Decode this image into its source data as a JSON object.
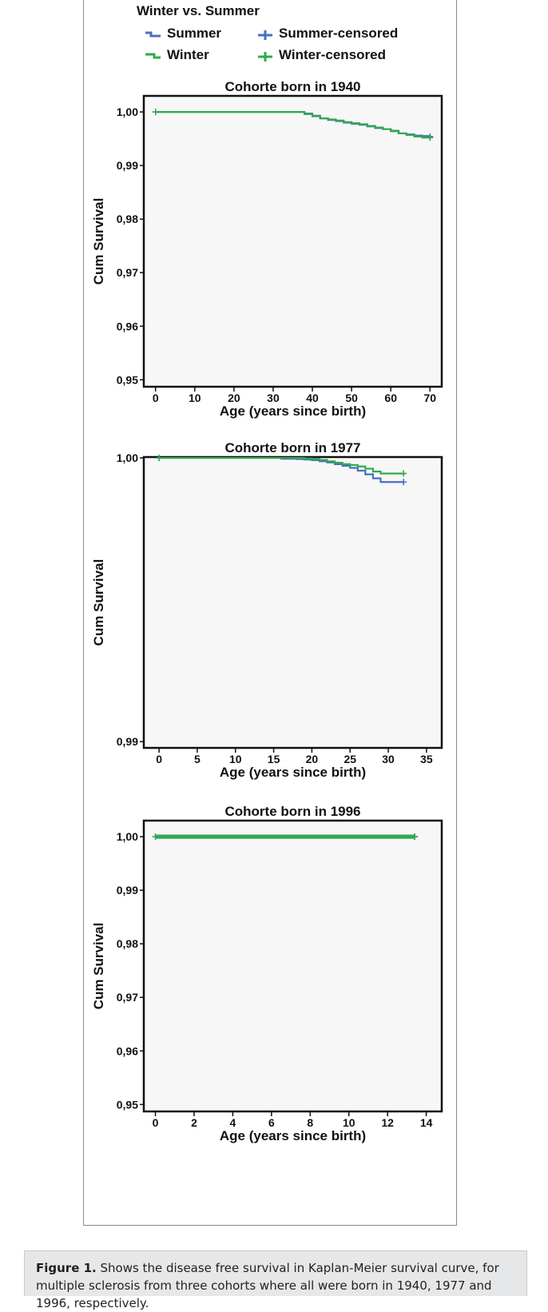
{
  "legend": {
    "title": "Winter vs. Summer",
    "items": [
      {
        "id": "summer",
        "label": "Summer",
        "symbol": "step",
        "color": "#4a6fbf"
      },
      {
        "id": "summer_censored",
        "label": "Summer-censored",
        "symbol": "plus",
        "color": "#4a6fbf"
      },
      {
        "id": "winter",
        "label": "Winter",
        "symbol": "step",
        "color": "#2eab4a"
      },
      {
        "id": "winter_censored",
        "label": "Winter-censored",
        "symbol": "plus",
        "color": "#2eab4a"
      }
    ]
  },
  "colors": {
    "summer": "#4a6fbf",
    "winter": "#2eab4a",
    "plot_bg": "#f7f7f7",
    "frame": "#111111"
  },
  "chart_data": [
    {
      "type": "line",
      "title": "Cohorte born in 1940",
      "xlabel": "Age (years since birth)",
      "ylabel": "Cum Survival",
      "xlim": [
        -3,
        73
      ],
      "ylim": [
        0.9487,
        1.003
      ],
      "x_ticks": [
        0,
        10,
        20,
        30,
        40,
        50,
        60,
        70
      ],
      "y_ticks": [
        0.95,
        0.96,
        0.97,
        0.98,
        0.99,
        1.0
      ],
      "y_tick_labels": [
        "0,95",
        "0,96",
        "0,97",
        "0,98",
        "0,99",
        "1,00"
      ],
      "series": [
        {
          "name": "Summer",
          "color": "#4a6fbf",
          "x": [
            0,
            34,
            36,
            38,
            40,
            42,
            44,
            46,
            48,
            50,
            52,
            54,
            56,
            58,
            60,
            62,
            64,
            66,
            68,
            70
          ],
          "y": [
            1.0,
            1.0,
            1.0,
            0.9997,
            0.9993,
            0.9988,
            0.9985,
            0.9983,
            0.998,
            0.9978,
            0.9976,
            0.9973,
            0.997,
            0.9968,
            0.9965,
            0.996,
            0.9958,
            0.9956,
            0.9955,
            0.9954
          ]
        },
        {
          "name": "Winter",
          "color": "#2eab4a",
          "x": [
            0,
            34,
            36,
            38,
            40,
            42,
            44,
            46,
            48,
            50,
            52,
            54,
            56,
            58,
            60,
            62,
            64,
            66,
            68,
            70
          ],
          "y": [
            1.0,
            1.0,
            1.0,
            0.9996,
            0.9992,
            0.9988,
            0.9986,
            0.9984,
            0.9981,
            0.9979,
            0.9977,
            0.9974,
            0.9971,
            0.9968,
            0.9964,
            0.996,
            0.9957,
            0.9954,
            0.9952,
            0.9952
          ]
        }
      ]
    },
    {
      "type": "line",
      "title": "Cohorte born in 1977",
      "xlabel": "Age (years since birth)",
      "ylabel": "Cum Survival",
      "xlim": [
        -2,
        37
      ],
      "ylim": [
        0.98978,
        1.00003
      ],
      "x_ticks": [
        0,
        5,
        10,
        15,
        20,
        25,
        30,
        35
      ],
      "y_ticks": [
        0.99,
        1.0
      ],
      "y_tick_labels": [
        "0,99",
        "1,00"
      ],
      "series": [
        {
          "name": "Summer",
          "color": "#4a6fbf",
          "x": [
            0,
            14,
            16,
            18,
            19,
            20,
            21,
            22,
            23,
            24,
            25,
            26,
            27,
            28,
            29,
            30,
            31,
            32
          ],
          "y": [
            1.0,
            1.0,
            0.99997,
            0.99996,
            0.99994,
            0.99992,
            0.99988,
            0.99984,
            0.99978,
            0.99972,
            0.99965,
            0.99955,
            0.99942,
            0.99928,
            0.99915,
            0.99915,
            0.99915,
            0.99915
          ]
        },
        {
          "name": "Winter",
          "color": "#2eab4a",
          "x": [
            0,
            17,
            19,
            20,
            21,
            22,
            23,
            24,
            25,
            26,
            27,
            28,
            29,
            30,
            31,
            32
          ],
          "y": [
            1.0,
            1.0,
            0.99998,
            0.99996,
            0.99993,
            0.99988,
            0.99983,
            0.99978,
            0.99975,
            0.9997,
            0.99962,
            0.99952,
            0.99945,
            0.99945,
            0.99945,
            0.99945
          ]
        }
      ]
    },
    {
      "type": "line",
      "title": "Cohorte born in 1996",
      "xlabel": "Age (years since birth)",
      "ylabel": "Cum Survival",
      "xlim": [
        -0.6,
        14.8
      ],
      "ylim": [
        0.9487,
        1.003
      ],
      "x_ticks": [
        0,
        2,
        4,
        6,
        8,
        10,
        12,
        14
      ],
      "y_ticks": [
        0.95,
        0.96,
        0.97,
        0.98,
        0.99,
        1.0
      ],
      "y_tick_labels": [
        "0,95",
        "0,96",
        "0,97",
        "0,98",
        "0,99",
        "1,00"
      ],
      "series": [
        {
          "name": "Summer",
          "color": "#4a6fbf",
          "x": [
            0,
            13.4
          ],
          "y": [
            1.0,
            1.0
          ]
        },
        {
          "name": "Winter",
          "color": "#2eab4a",
          "x": [
            0,
            13.4
          ],
          "y": [
            1.0,
            1.0
          ]
        }
      ]
    }
  ],
  "caption": {
    "label": "Figure 1.",
    "text": " Shows the disease free survival in Kaplan-Meier survival curve, for multiple sclerosis from three cohorts where all were born in 1940, 1977 and 1996, respectively."
  }
}
